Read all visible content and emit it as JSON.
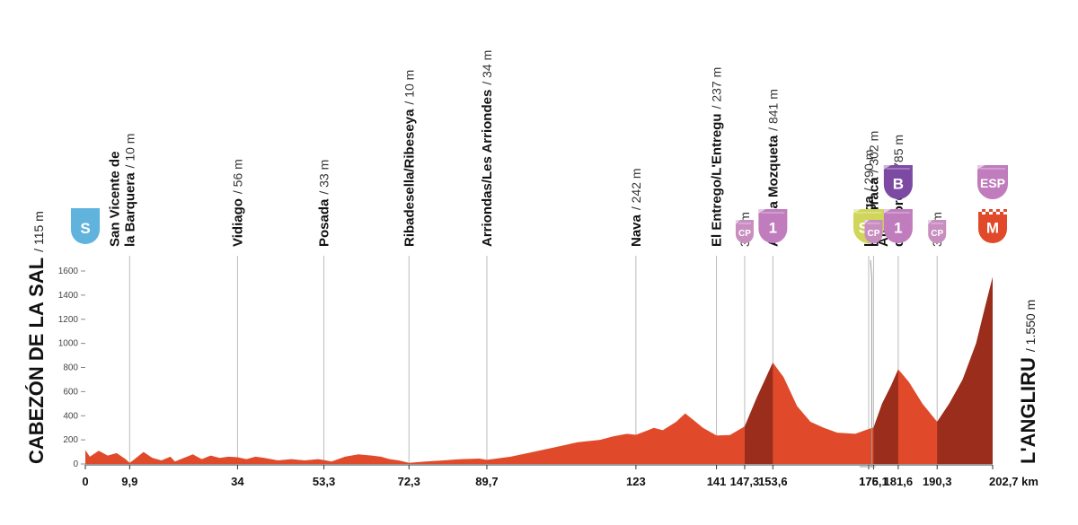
{
  "chart_data": {
    "type": "area",
    "title": "",
    "xlabel": "",
    "ylabel": "",
    "x_unit": "km",
    "xlim": [
      0,
      202.7
    ],
    "ylim": [
      0,
      1600
    ],
    "y_ticks": [
      0,
      200,
      400,
      600,
      800,
      1000,
      1200,
      1400,
      1600
    ],
    "x_ticks": [
      "0",
      "9,9",
      "34",
      "53,3",
      "72,3",
      "89,7",
      "123",
      "141",
      "147,3",
      "153,6",
      "175",
      "176,1",
      "181,6",
      "190,3",
      "202,7 km"
    ],
    "start": {
      "name": "CABEZÓN DE LA SAL",
      "altitude": "/ 115 m"
    },
    "finish": {
      "name": "L'ANGLIRU",
      "altitude": "/ 1.550 m"
    },
    "profile": {
      "x": [
        0,
        1,
        3,
        5,
        7,
        9,
        9.9,
        11,
        13,
        15,
        17,
        19,
        20,
        22,
        24,
        26,
        28,
        30,
        32,
        34,
        36,
        38,
        40,
        43,
        46,
        49,
        52,
        53.3,
        55,
        58,
        61,
        64,
        66,
        68,
        70,
        72.3,
        76,
        80,
        84,
        88,
        89.7,
        95,
        100,
        105,
        110,
        115,
        118,
        121,
        123,
        125,
        127,
        129,
        132,
        134,
        136,
        138,
        141,
        144,
        147.3,
        150,
        153.6,
        156,
        159,
        162,
        165,
        168,
        172,
        175,
        176.1,
        178,
        180,
        181.6,
        184,
        187,
        190.3,
        193,
        196,
        199,
        201,
        202.7
      ],
      "elevation": [
        115,
        60,
        110,
        70,
        90,
        40,
        10,
        40,
        100,
        50,
        30,
        60,
        20,
        50,
        80,
        40,
        70,
        50,
        60,
        56,
        40,
        60,
        50,
        30,
        40,
        30,
        40,
        33,
        20,
        60,
        80,
        70,
        60,
        40,
        30,
        10,
        20,
        30,
        40,
        45,
        34,
        60,
        100,
        140,
        180,
        200,
        230,
        250,
        242,
        270,
        300,
        280,
        350,
        420,
        360,
        300,
        237,
        240,
        312,
        550,
        841,
        720,
        480,
        350,
        300,
        260,
        250,
        290,
        302,
        500,
        650,
        785,
        680,
        500,
        350,
        500,
        700,
        1000,
        1300,
        1550
      ]
    },
    "climb_shading": [
      [
        147.3,
        153.6
      ],
      [
        176.1,
        181.6
      ],
      [
        190.3,
        202.7
      ]
    ],
    "labels": [
      {
        "km": 9.9,
        "lines": [
          "San Vicente de",
          "la Barquera"
        ],
        "alt": "/ 10 m"
      },
      {
        "km": 34,
        "lines": [
          "Vidiago"
        ],
        "alt": "/ 56 m"
      },
      {
        "km": 53.3,
        "lines": [
          "Posada"
        ],
        "alt": "/ 33 m"
      },
      {
        "km": 72.3,
        "lines": [
          "Ribadesella/Ribeseya"
        ],
        "alt": "/ 10 m"
      },
      {
        "km": 89.7,
        "lines": [
          "Arriondas/Les Arriondes"
        ],
        "alt": "/ 34 m"
      },
      {
        "km": 123,
        "lines": [
          "Nava"
        ],
        "alt": "/ 242 m"
      },
      {
        "km": 141,
        "lines": [
          "El Entrego/L'Entregu"
        ],
        "alt": "/ 237 m"
      },
      {
        "km": 147.3,
        "lines": [],
        "alt": "312 m"
      },
      {
        "km": 153.6,
        "lines": [
          "Alto La Mozqueta"
        ],
        "alt": "/ 841 m"
      },
      {
        "km": 175,
        "lines": [
          "La Vega"
        ],
        "alt": "/ 290 m"
      },
      {
        "km": 176.1,
        "lines": [
          "La Barraca"
        ],
        "alt": "/ 302 m"
      },
      {
        "km": 181.6,
        "lines": [
          "Alto",
          "del Cordal"
        ],
        "alt": "/ 785 m"
      },
      {
        "km": 190.3,
        "lines": [],
        "alt": "350 m"
      }
    ],
    "badges": [
      {
        "km": 0,
        "text": "S",
        "kind": "start",
        "color": "#5fb3dd"
      },
      {
        "km": 147.3,
        "text": "CP",
        "kind": "cp",
        "color": "#c98ec0"
      },
      {
        "km": 153.6,
        "text": "1",
        "kind": "mountain",
        "color": "#c07cbd"
      },
      {
        "km": 175,
        "text": "SP",
        "kind": "sprint",
        "color": "#cfd65a"
      },
      {
        "km": 176.1,
        "text": "CP",
        "kind": "cp",
        "color": "#c98ec0"
      },
      {
        "km": 181.6,
        "text": "1",
        "kind": "mountain",
        "color": "#c07cbd"
      },
      {
        "km": 181.6,
        "text": "B",
        "kind": "bonus",
        "color": "#7d4aa3"
      },
      {
        "km": 190.3,
        "text": "CP",
        "kind": "cp",
        "color": "#c98ec0"
      },
      {
        "km": 202.7,
        "text": "M",
        "kind": "finish",
        "color": "#e04a2a"
      },
      {
        "km": 202.7,
        "text": "ESP",
        "kind": "special",
        "color": "#c07cbd"
      }
    ],
    "colors": {
      "fill": "#e04a2a",
      "climb": "#9a2d1c",
      "axis": "#888888",
      "line": "#bbbbbb"
    },
    "grid": false,
    "legend": "none"
  }
}
